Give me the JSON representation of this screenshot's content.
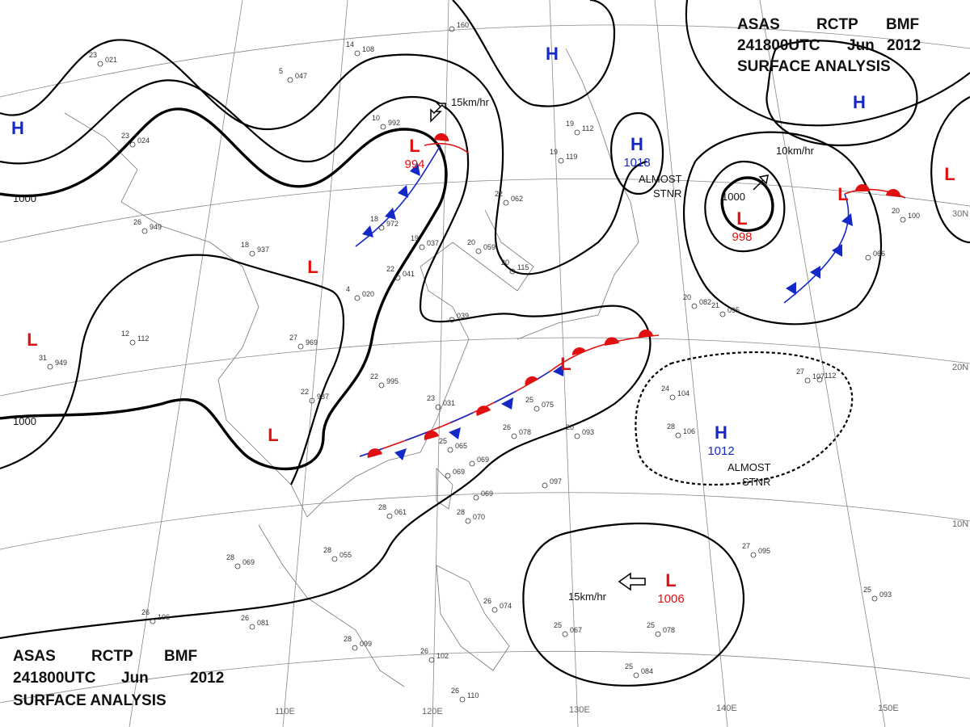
{
  "header": {
    "agency": "ASAS",
    "station": "RCTP",
    "office": "BMF",
    "time": "241800UTC",
    "month": "Jun",
    "year": "2012",
    "product": "SURFACE ANALYSIS"
  },
  "systems": [
    {
      "kind": "H"
    },
    {
      "kind": "H"
    },
    {
      "kind": "H"
    },
    {
      "kind": "H",
      "pressure": "1018"
    },
    {
      "kind": "L",
      "pressure": "994"
    },
    {
      "kind": "L",
      "pressure": "998"
    },
    {
      "kind": "L"
    },
    {
      "kind": "L"
    },
    {
      "kind": "L"
    },
    {
      "kind": "H",
      "pressure": "1012"
    },
    {
      "kind": "L",
      "pressure": "1006"
    },
    {
      "kind": "L"
    },
    {
      "kind": "L"
    },
    {
      "kind": "L"
    }
  ],
  "isobar_labels": [
    "1000",
    "1000",
    "1000"
  ],
  "motions": [
    "15km/hr",
    "10km/hr",
    "15km/hr"
  ],
  "stationary_notes": [
    [
      "ALMOST",
      "STNR"
    ],
    [
      "ALMOST",
      "STNR"
    ]
  ],
  "longitudes": [
    "110E",
    "120E",
    "130E",
    "140E",
    "150E"
  ],
  "latitudes": [
    "30N",
    "20N",
    "10N"
  ],
  "stations": [
    [
      "23",
      "021"
    ],
    [
      "5",
      "047"
    ],
    [
      "14",
      "108"
    ],
    [
      "160"
    ],
    [
      "23",
      "024"
    ],
    [
      "10",
      "992"
    ],
    [
      "19",
      "112"
    ],
    [
      "19",
      "119"
    ],
    [
      "22",
      "062"
    ],
    [
      "18",
      "972"
    ],
    [
      "18",
      "937"
    ],
    [
      "26",
      "949"
    ],
    [
      "19",
      "037"
    ],
    [
      "20",
      "059"
    ],
    [
      "20",
      "115"
    ],
    [
      "22",
      "041"
    ],
    [
      "4",
      "020"
    ],
    [
      "27",
      "969"
    ],
    [
      "12",
      "112"
    ],
    [
      "31",
      "949"
    ],
    [
      "039"
    ],
    [
      "20",
      "082"
    ],
    [
      "21",
      "095"
    ],
    [
      "22",
      "987"
    ],
    [
      "22",
      "995"
    ],
    [
      "23",
      "031"
    ],
    [
      "25",
      "075"
    ],
    [
      "26",
      "078"
    ],
    [
      "20",
      "093"
    ],
    [
      "24",
      "104"
    ],
    [
      "27",
      "107"
    ],
    [
      "28",
      "106"
    ],
    [
      "25",
      "065"
    ],
    [
      "069"
    ],
    [
      "069"
    ],
    [
      "069"
    ],
    [
      "28",
      "061"
    ],
    [
      "28",
      "070"
    ],
    [
      "097"
    ],
    [
      "28",
      "055"
    ],
    [
      "28",
      "069"
    ],
    [
      "26",
      "106"
    ],
    [
      "26",
      "081"
    ],
    [
      "28",
      "099"
    ],
    [
      "26",
      "102"
    ],
    [
      "26",
      "110"
    ],
    [
      "26",
      "074"
    ],
    [
      "25",
      "067"
    ],
    [
      "25",
      "078"
    ],
    [
      "25",
      "084"
    ],
    [
      "27",
      "095"
    ],
    [
      "25",
      "093"
    ],
    [
      "066"
    ],
    [
      "20",
      "100"
    ],
    [
      "112"
    ]
  ]
}
